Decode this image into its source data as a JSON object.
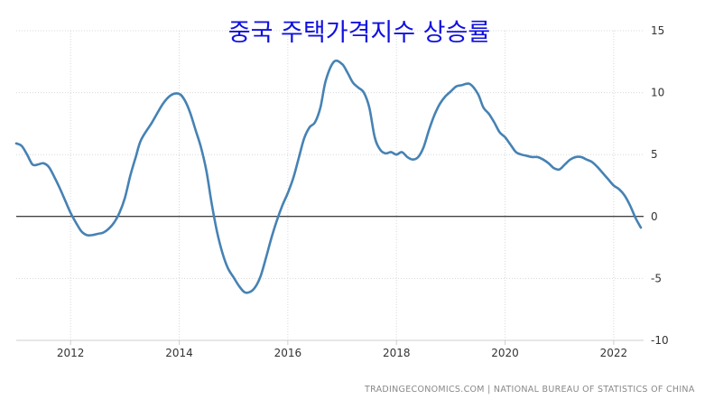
{
  "chart_data": {
    "type": "line",
    "title": "중국 주택가격지수 상승률",
    "xlabel": "",
    "ylabel": "",
    "xlim": [
      2011.0,
      2022.55
    ],
    "ylim": [
      -10,
      15
    ],
    "x_ticks": [
      "2012",
      "2014",
      "2016",
      "2018",
      "2020",
      "2022"
    ],
    "y_ticks": [
      "15",
      "10",
      "5",
      "0",
      "-5",
      "-10"
    ],
    "grid": true,
    "zero_line": true,
    "line_color": "#4682b4",
    "series": [
      {
        "x": [
          2011.0,
          2011.1,
          2011.2,
          2011.3,
          2011.4,
          2011.5,
          2011.6,
          2011.7,
          2011.8,
          2011.9,
          2012.0,
          2012.1,
          2012.2,
          2012.3,
          2012.4,
          2012.5,
          2012.6,
          2012.7,
          2012.8,
          2012.9,
          2013.0,
          2013.1,
          2013.2,
          2013.3,
          2013.5,
          2013.7,
          2013.85,
          2014.0,
          2014.1,
          2014.2,
          2014.3,
          2014.4,
          2014.5,
          2014.6,
          2014.7,
          2014.8,
          2014.9,
          2015.0,
          2015.1,
          2015.2,
          2015.3,
          2015.4,
          2015.5,
          2015.6,
          2015.7,
          2015.8,
          2015.9,
          2016.0,
          2016.1,
          2016.2,
          2016.3,
          2016.4,
          2016.5,
          2016.6,
          2016.7,
          2016.85,
          2017.0,
          2017.1,
          2017.2,
          2017.3,
          2017.4,
          2017.5,
          2017.6,
          2017.7,
          2017.8,
          2017.9,
          2018.0,
          2018.1,
          2018.2,
          2018.3,
          2018.4,
          2018.5,
          2018.6,
          2018.7,
          2018.8,
          2018.9,
          2019.0,
          2019.1,
          2019.2,
          2019.35,
          2019.5,
          2019.6,
          2019.7,
          2019.8,
          2019.9,
          2020.0,
          2020.1,
          2020.2,
          2020.3,
          2020.4,
          2020.5,
          2020.6,
          2020.7,
          2020.8,
          2020.9,
          2021.0,
          2021.1,
          2021.2,
          2021.3,
          2021.4,
          2021.5,
          2021.6,
          2021.7,
          2021.8,
          2021.9,
          2022.0,
          2022.1,
          2022.2,
          2022.3,
          2022.4,
          2022.5
        ],
        "values": [
          5.9,
          5.7,
          5.0,
          4.2,
          4.2,
          4.3,
          4.0,
          3.2,
          2.3,
          1.3,
          0.3,
          -0.5,
          -1.2,
          -1.5,
          -1.5,
          -1.4,
          -1.3,
          -1.0,
          -0.5,
          0.3,
          1.5,
          3.3,
          4.8,
          6.2,
          7.6,
          9.1,
          9.8,
          9.9,
          9.4,
          8.4,
          7.0,
          5.6,
          3.7,
          1.0,
          -1.3,
          -3.0,
          -4.2,
          -4.9,
          -5.6,
          -6.1,
          -6.1,
          -5.7,
          -4.8,
          -3.3,
          -1.7,
          -0.3,
          0.9,
          1.9,
          3.1,
          4.7,
          6.3,
          7.2,
          7.6,
          8.8,
          11.0,
          12.5,
          12.3,
          11.6,
          10.8,
          10.4,
          10.0,
          8.8,
          6.4,
          5.4,
          5.1,
          5.2,
          5.0,
          5.2,
          4.8,
          4.6,
          4.8,
          5.6,
          7.0,
          8.2,
          9.1,
          9.7,
          10.1,
          10.5,
          10.6,
          10.7,
          9.9,
          8.8,
          8.3,
          7.6,
          6.8,
          6.4,
          5.8,
          5.2,
          5.0,
          4.9,
          4.8,
          4.8,
          4.6,
          4.3,
          3.9,
          3.8,
          4.2,
          4.6,
          4.8,
          4.8,
          4.6,
          4.4,
          4.0,
          3.5,
          3.0,
          2.5,
          2.2,
          1.7,
          0.9,
          -0.1,
          -0.9
        ]
      }
    ]
  },
  "source_text": "TRADINGECONOMICS.COM  |  NATIONAL BUREAU OF STATISTICS OF CHINA"
}
